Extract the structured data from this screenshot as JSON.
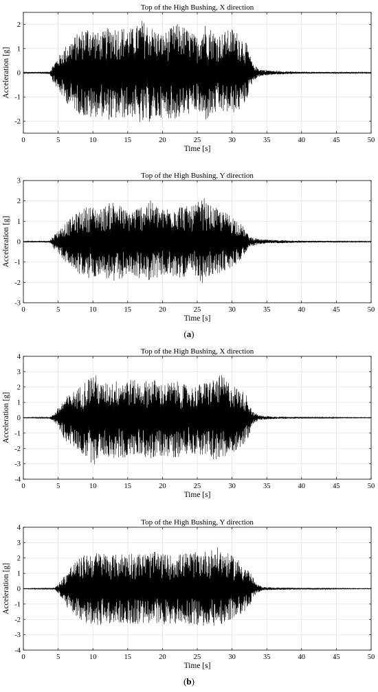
{
  "chart_data": [
    {
      "type": "line",
      "title": "Top of the High Bushing, X direction",
      "xlabel": "Time [s]",
      "ylabel": "Acceleration [g]",
      "xlim": [
        0,
        50
      ],
      "ylim": [
        -2.5,
        2.5
      ],
      "xticks": [
        "0",
        "5",
        "10",
        "15",
        "20",
        "25",
        "30",
        "35",
        "40",
        "45",
        "50"
      ],
      "yticks": [
        "-2",
        "-1",
        "0",
        "1",
        "2"
      ],
      "grid": true,
      "envelope": {
        "x": [
          0,
          3.8,
          4.3,
          6,
          8,
          9.5,
          11,
          12.5,
          14,
          16,
          17,
          18,
          20,
          22,
          23,
          25,
          26,
          28,
          30,
          31,
          32,
          33,
          34,
          36,
          40,
          45,
          50
        ],
        "upper": [
          0.02,
          0.05,
          0.35,
          1.1,
          1.7,
          2.0,
          1.6,
          1.95,
          1.9,
          1.85,
          2.2,
          2.0,
          1.6,
          2.05,
          1.95,
          1.5,
          2.1,
          1.6,
          1.85,
          1.65,
          1.3,
          0.35,
          0.15,
          0.08,
          0.04,
          0.03,
          0.02
        ],
        "lower": [
          -0.02,
          -0.05,
          -0.4,
          -1.2,
          -1.7,
          -1.95,
          -1.75,
          -2.0,
          -1.9,
          -1.85,
          -2.2,
          -2.05,
          -1.85,
          -1.95,
          -1.8,
          -1.6,
          -2.05,
          -1.65,
          -1.7,
          -1.6,
          -1.2,
          -0.35,
          -0.15,
          -0.08,
          -0.04,
          -0.03,
          -0.02
        ]
      }
    },
    {
      "type": "line",
      "title": "Top of the High Bushing, Y direction",
      "xlabel": "Time [s]",
      "ylabel": "Acceleration [g]",
      "xlim": [
        0,
        50
      ],
      "ylim": [
        -3,
        3
      ],
      "xticks": [
        "0",
        "5",
        "10",
        "15",
        "20",
        "25",
        "30",
        "35",
        "40",
        "45",
        "50"
      ],
      "yticks": [
        "-3",
        "-2",
        "-1",
        "0",
        "1",
        "2",
        "3"
      ],
      "grid": true,
      "envelope": {
        "x": [
          0,
          3.8,
          4.3,
          6,
          8,
          9.5,
          11,
          13,
          15,
          17,
          18,
          20,
          22,
          24,
          26,
          26.5,
          28,
          30,
          31.5,
          32.5,
          34,
          36,
          40,
          45,
          50
        ],
        "upper": [
          0.02,
          0.05,
          0.3,
          0.9,
          1.5,
          1.8,
          1.6,
          2.05,
          1.5,
          1.8,
          2.1,
          1.6,
          1.9,
          1.7,
          2.15,
          1.85,
          1.6,
          1.3,
          0.8,
          0.25,
          0.12,
          0.08,
          0.05,
          0.03,
          0.02
        ],
        "lower": [
          -0.02,
          -0.05,
          -0.3,
          -1.0,
          -1.6,
          -1.9,
          -1.6,
          -2.1,
          -1.6,
          -1.85,
          -1.9,
          -1.7,
          -1.8,
          -1.7,
          -2.1,
          -1.85,
          -1.6,
          -1.3,
          -0.8,
          -0.25,
          -0.12,
          -0.08,
          -0.05,
          -0.03,
          -0.02
        ]
      }
    },
    {
      "type": "line",
      "title": "Top of the High Bushing, X direction",
      "xlabel": "Time [s]",
      "ylabel": "Acceleration [g]",
      "xlim": [
        0,
        50
      ],
      "ylim": [
        -4,
        4
      ],
      "xticks": [
        "0",
        "5",
        "10",
        "15",
        "20",
        "25",
        "30",
        "35",
        "40",
        "45",
        "50"
      ],
      "yticks": [
        "-4",
        "-3",
        "-2",
        "-1",
        "0",
        "1",
        "2",
        "3",
        "4"
      ],
      "grid": true,
      "envelope": {
        "x": [
          0,
          3.8,
          4.5,
          6,
          8,
          10.2,
          11,
          13,
          15,
          17,
          18.5,
          20,
          22,
          24,
          26,
          28.5,
          30,
          32,
          33,
          34,
          36,
          40,
          45,
          50
        ],
        "upper": [
          0.02,
          0.05,
          0.3,
          1.3,
          2.0,
          3.0,
          2.2,
          2.4,
          2.6,
          2.3,
          2.6,
          2.2,
          2.4,
          2.0,
          2.3,
          2.8,
          2.2,
          1.6,
          0.4,
          0.15,
          0.08,
          0.05,
          0.03,
          0.02
        ],
        "lower": [
          -0.02,
          -0.05,
          -0.3,
          -1.5,
          -2.2,
          -3.1,
          -2.4,
          -2.7,
          -2.6,
          -2.4,
          -2.8,
          -2.5,
          -2.6,
          -2.3,
          -2.5,
          -2.9,
          -2.3,
          -1.7,
          -0.4,
          -0.15,
          -0.08,
          -0.05,
          -0.03,
          -0.02
        ]
      }
    },
    {
      "type": "line",
      "title": "Top of the High Bushing, Y direction",
      "xlabel": "Time [s]",
      "ylabel": "Acceleration [g]",
      "xlim": [
        0,
        50
      ],
      "ylim": [
        -4,
        4
      ],
      "xticks": [
        "0",
        "5",
        "10",
        "15",
        "20",
        "25",
        "30",
        "35",
        "40",
        "45",
        "50"
      ],
      "yticks": [
        "-4",
        "-3",
        "-2",
        "-1",
        "0",
        "1",
        "2",
        "3",
        "4"
      ],
      "grid": true,
      "envelope": {
        "x": [
          0,
          4.5,
          5.5,
          7,
          9,
          11,
          13,
          15,
          17,
          19,
          21,
          23,
          25,
          26.5,
          28,
          29,
          31,
          32.5,
          33.5,
          34.5,
          36,
          40,
          45,
          50
        ],
        "upper": [
          0.02,
          0.05,
          0.6,
          1.6,
          2.3,
          2.4,
          2.2,
          2.4,
          2.3,
          2.4,
          2.2,
          2.3,
          2.4,
          2.5,
          2.7,
          2.4,
          1.9,
          1.2,
          0.3,
          0.12,
          0.08,
          0.05,
          0.03,
          0.02
        ],
        "lower": [
          -0.02,
          -0.05,
          -0.6,
          -1.8,
          -2.3,
          -2.4,
          -2.2,
          -2.4,
          -2.3,
          -2.4,
          -2.3,
          -2.3,
          -2.4,
          -2.5,
          -2.4,
          -2.3,
          -1.8,
          -1.2,
          -0.3,
          -0.12,
          -0.08,
          -0.05,
          -0.03,
          -0.02
        ]
      }
    }
  ],
  "captions": [
    "(a)",
    "(b)"
  ]
}
